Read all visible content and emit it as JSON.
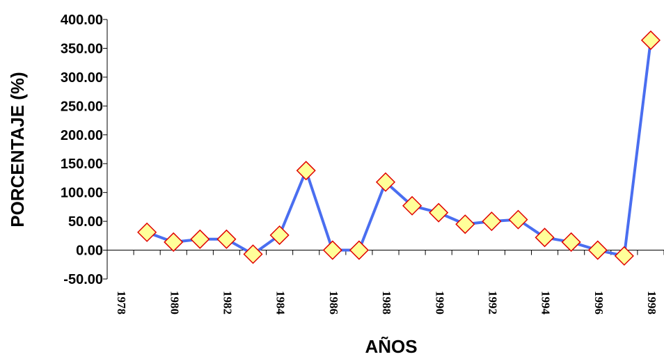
{
  "chart_data": {
    "type": "line",
    "xlabel": "AÑOS",
    "ylabel": "PORCENTAJE (%)",
    "x_ticks": [
      "1978",
      "1980",
      "1982",
      "1984",
      "1986",
      "1988",
      "1990",
      "1992",
      "1994",
      "1996",
      "1998"
    ],
    "y_ticks": [
      "400.00",
      "350.00",
      "300.00",
      "250.00",
      "200.00",
      "150.00",
      "100.00",
      "50.00",
      "0.00",
      "-50.00"
    ],
    "ylim": [
      -50,
      400
    ],
    "xlim": [
      1978,
      1998
    ],
    "grid": false,
    "legend": "none",
    "line_color": "#4a6ef0",
    "marker_fill": "#ffff99",
    "marker_stroke": "#e00000",
    "series": [
      {
        "x": [
          1979,
          1980,
          1981,
          1982,
          1983,
          1984,
          1985,
          1986,
          1987,
          1988,
          1989,
          1990,
          1991,
          1992,
          1993,
          1994,
          1995,
          1996,
          1997,
          1998
        ],
        "values": [
          31,
          14,
          19,
          19,
          -7,
          26,
          138,
          0,
          0,
          118,
          77,
          65,
          45,
          50,
          53,
          22,
          14,
          0,
          -10,
          364
        ]
      }
    ]
  }
}
